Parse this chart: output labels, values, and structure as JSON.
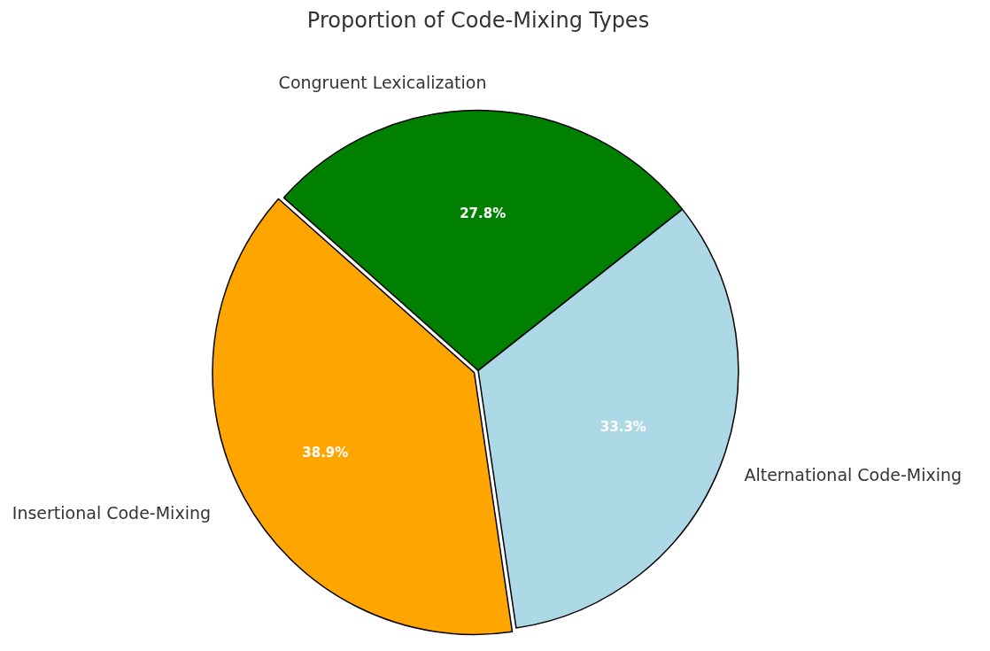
{
  "chart_data": {
    "type": "pie",
    "title": "Proportion of Code-Mixing Types",
    "categories": [
      "Insertional Code-Mixing",
      "Congruent Lexicalization",
      "Alternational Code-Mixing"
    ],
    "values": [
      38.9,
      27.8,
      33.3
    ],
    "colors": [
      "#ffa500",
      "#008000",
      "#add8e6"
    ],
    "value_labels": [
      "38.9%",
      "27.8%",
      "33.3%"
    ],
    "legend": false
  }
}
